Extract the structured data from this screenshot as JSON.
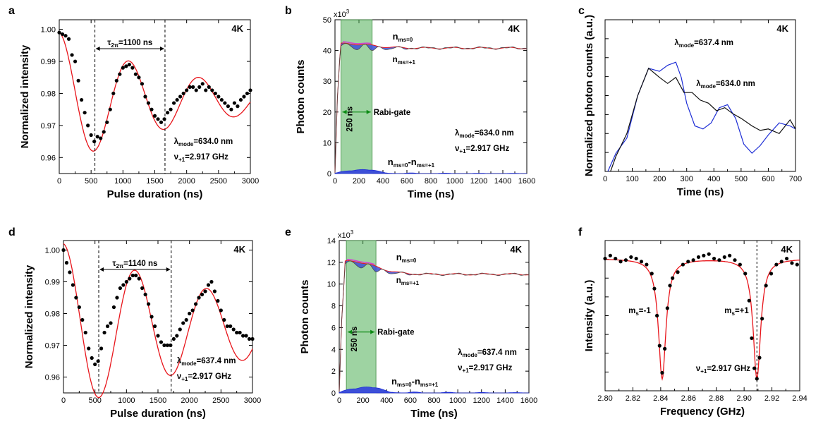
{
  "colors": {
    "fit": "#e8151b",
    "data": "#000000",
    "blue": "#1f2fd6",
    "fill_blue": "#3c4fd8",
    "fill_magenta": "#d23fd0",
    "gate": "#4fae55",
    "green_text": "#0c8a14",
    "black_line": "#111111"
  },
  "chart_data": [
    {
      "panel": "a",
      "type": "scatter",
      "xlabel": "Pulse duration (ns)",
      "ylabel": "Normalized intensity",
      "xlim": [
        0,
        3000
      ],
      "ylim": [
        0.955,
        1.003
      ],
      "xticks": [
        "0",
        "500",
        "1000",
        "1500",
        "2000",
        "2500",
        "3000"
      ],
      "yticks": [
        "0.96",
        "0.97",
        "0.98",
        "0.99",
        "1.00"
      ],
      "temp": "4K",
      "lambda_label": "λ",
      "lambda_sub": "mode",
      "lambda_val": "=634.0 nm",
      "nu_label": "ν",
      "nu_sub": "+1",
      "nu_val": "=2.917 GHz",
      "tau_label": "τ",
      "tau_sub": "2π",
      "tau_val": "=1100 ns",
      "vlines": [
        560,
        1660
      ],
      "fit": {
        "A": 0.021,
        "tau": 1100,
        "decay": 2000,
        "offset": 0.978,
        "slow": 0.0
      },
      "x": [
        0,
        50,
        100,
        150,
        200,
        250,
        300,
        350,
        400,
        450,
        500,
        550,
        600,
        650,
        700,
        750,
        800,
        850,
        900,
        950,
        1000,
        1050,
        1100,
        1150,
        1200,
        1250,
        1300,
        1350,
        1400,
        1450,
        1500,
        1550,
        1600,
        1650,
        1700,
        1750,
        1800,
        1850,
        1900,
        1950,
        2000,
        2050,
        2100,
        2150,
        2200,
        2250,
        2300,
        2350,
        2400,
        2450,
        2500,
        2550,
        2600,
        2650,
        2700,
        2750,
        2800,
        2850,
        2900,
        2950,
        3000
      ],
      "y": [
        0.999,
        0.9985,
        0.998,
        0.997,
        0.992,
        0.99,
        0.984,
        0.978,
        0.974,
        0.97,
        0.967,
        0.965,
        0.9665,
        0.966,
        0.968,
        0.971,
        0.975,
        0.98,
        0.984,
        0.986,
        0.988,
        0.9885,
        0.989,
        0.988,
        0.986,
        0.985,
        0.983,
        0.979,
        0.977,
        0.975,
        0.973,
        0.972,
        0.971,
        0.972,
        0.974,
        0.975,
        0.977,
        0.978,
        0.979,
        0.98,
        0.981,
        0.982,
        0.982,
        0.981,
        0.982,
        0.983,
        0.981,
        0.982,
        0.981,
        0.98,
        0.979,
        0.978,
        0.977,
        0.976,
        0.975,
        0.977,
        0.976,
        0.978,
        0.979,
        0.98,
        0.981
      ]
    },
    {
      "panel": "b",
      "type": "area",
      "xlabel": "Time (ns)",
      "ylabel": "Photon counts",
      "xlim": [
        0,
        1600
      ],
      "ylim": [
        0,
        50
      ],
      "xticks": [
        "0",
        "200",
        "400",
        "600",
        "800",
        "1000",
        "1200",
        "1400",
        "1600"
      ],
      "yticks": [
        "0",
        "10",
        "20",
        "30",
        "40",
        "50"
      ],
      "multiplier": "x10",
      "multiplier_exp": "3",
      "temp": "4K",
      "gate": [
        50,
        310
      ],
      "gate_width": "250 ns",
      "gate_label": "Rabi-gate",
      "n0_label": "n",
      "n0_sub": "ms=0",
      "n1_label": "n",
      "n1_sub": "ms=+1",
      "diff_label": "n",
      "diff_sub": "ms=0",
      "diff_mid": "-n",
      "diff_sub2": "ms=+1",
      "lambda_label": "λ",
      "lambda_sub": "mode",
      "lambda_val": "=634.0 nm",
      "nu_label": "ν",
      "nu_sub": "+1",
      "nu_val": "=2.917 GHz",
      "plateau": 40.8,
      "peak": 42.2,
      "diff_amp": 1.3
    },
    {
      "panel": "c",
      "type": "line",
      "xlabel": "Time (ns)",
      "ylabel": "Normalized photon counts (a.u.)",
      "xlim": [
        0,
        700
      ],
      "ylim": [
        0,
        100
      ],
      "xticks": [
        "0",
        "100",
        "200",
        "300",
        "400",
        "500",
        "600",
        "700"
      ],
      "temp": "4K",
      "series": [
        {
          "name": "λmode=637.4 nm",
          "label": "λ",
          "sub": "mode",
          "val": "=637.4 nm",
          "color": "blue",
          "x": [
            10,
            40,
            80,
            120,
            160,
            200,
            230,
            260,
            280,
            300,
            330,
            360,
            390,
            420,
            450,
            480,
            510,
            540,
            570,
            600,
            640,
            680,
            700
          ],
          "y": [
            0,
            12,
            22,
            50,
            68,
            66,
            70,
            72,
            62,
            45,
            30,
            28,
            32,
            42,
            44,
            35,
            18,
            12,
            17,
            24,
            32,
            30,
            28
          ]
        },
        {
          "name": "λmode=634.0 nm",
          "label": "λ",
          "sub": "mode",
          "val": "=634.0 nm",
          "color": "black_line",
          "x": [
            20,
            40,
            80,
            120,
            160,
            200,
            230,
            260,
            290,
            320,
            350,
            380,
            410,
            440,
            470,
            500,
            540,
            570,
            600,
            640,
            680,
            700
          ],
          "y": [
            0,
            10,
            25,
            50,
            68,
            62,
            58,
            62,
            52,
            52,
            47,
            45,
            40,
            42,
            38,
            35,
            30,
            27,
            28,
            25,
            34,
            28
          ]
        }
      ]
    },
    {
      "panel": "d",
      "type": "scatter",
      "xlabel": "Pulse duration (ns)",
      "ylabel": "Normalized intensity",
      "xlim": [
        0,
        3000
      ],
      "ylim": [
        0.955,
        1.003
      ],
      "xticks": [
        "0",
        "500",
        "1000",
        "1500",
        "2000",
        "2500",
        "3000"
      ],
      "yticks": [
        "0.96",
        "0.97",
        "0.98",
        "0.99",
        "1.00"
      ],
      "temp": "4K",
      "lambda_label": "λ",
      "lambda_sub": "mode",
      "lambda_val": "=637.4 nm",
      "nu_label": "ν",
      "nu_sub": "+1",
      "nu_val": "=2.917 GHz",
      "tau_label": "τ",
      "tau_sub": "2π",
      "tau_val": "=1140 ns",
      "vlines": [
        560,
        1710
      ],
      "fit": {
        "A": 0.0265,
        "tau": 1140,
        "decay": 3000,
        "offset": 0.9755,
        "slow": 0.0
      },
      "x": [
        0,
        50,
        100,
        150,
        200,
        250,
        300,
        350,
        400,
        450,
        500,
        550,
        600,
        650,
        700,
        750,
        800,
        850,
        900,
        950,
        1000,
        1050,
        1100,
        1150,
        1200,
        1250,
        1300,
        1350,
        1400,
        1450,
        1500,
        1550,
        1600,
        1650,
        1700,
        1750,
        1800,
        1850,
        1900,
        1950,
        2000,
        2050,
        2100,
        2150,
        2200,
        2250,
        2300,
        2350,
        2400,
        2450,
        2500,
        2550,
        2600,
        2650,
        2700,
        2750,
        2800,
        2850,
        2900,
        2950,
        3000
      ],
      "y": [
        1.0,
        0.996,
        0.993,
        0.989,
        0.985,
        0.982,
        0.978,
        0.974,
        0.969,
        0.966,
        0.964,
        0.965,
        0.969,
        0.974,
        0.976,
        0.977,
        0.982,
        0.985,
        0.988,
        0.989,
        0.99,
        0.991,
        0.992,
        0.992,
        0.991,
        0.988,
        0.986,
        0.983,
        0.979,
        0.976,
        0.973,
        0.971,
        0.97,
        0.97,
        0.97,
        0.972,
        0.973,
        0.975,
        0.977,
        0.978,
        0.98,
        0.981,
        0.983,
        0.985,
        0.986,
        0.987,
        0.989,
        0.99,
        0.987,
        0.984,
        0.981,
        0.978,
        0.976,
        0.976,
        0.975,
        0.974,
        0.974,
        0.973,
        0.973,
        0.972,
        0.972
      ]
    },
    {
      "panel": "e",
      "type": "area",
      "xlabel": "Time (ns)",
      "ylabel": "Photon counts",
      "xlim": [
        0,
        1600
      ],
      "ylim": [
        0,
        14
      ],
      "xticks": [
        "0",
        "200",
        "400",
        "600",
        "800",
        "1000",
        "1200",
        "1400",
        "1600"
      ],
      "yticks": [
        "0",
        "2",
        "4",
        "6",
        "8",
        "10",
        "12",
        "14"
      ],
      "multiplier": "x10",
      "multiplier_exp": "3",
      "temp": "4K",
      "gate": [
        60,
        310
      ],
      "gate_width": "250 ns",
      "gate_label": "Rabi-gate",
      "n0_label": "n",
      "n0_sub": "ms=0",
      "n1_label": "n",
      "n1_sub": "ms=+1",
      "diff_label": "n",
      "diff_sub": "ms=0",
      "diff_mid": "-n",
      "diff_sub2": "ms=+1",
      "lambda_label": "λ",
      "lambda_sub": "mode",
      "lambda_val": "=637.4 nm",
      "nu_label": "ν",
      "nu_sub": "+1",
      "nu_val": "=2.917 GHz",
      "plateau": 10.9,
      "peak": 12.1,
      "diff_amp": 0.55
    },
    {
      "panel": "f",
      "type": "scatter",
      "xlabel": "Frequency (GHz)",
      "ylabel": "Intensity (a.u.)",
      "xlim": [
        2.8,
        2.95
      ],
      "ylim": [
        0,
        100
      ],
      "xticks": [
        "2.80",
        "2.82",
        "2.84",
        "2.86",
        "2.88",
        "2.90",
        "2.92",
        "2.94"
      ],
      "temp": "4K",
      "ms_minus_label": "m",
      "ms_minus_sub": "s",
      "ms_minus_val": "=-1",
      "ms_plus_label": "m",
      "ms_plus_sub": "s",
      "ms_plus_val": "=+1",
      "nu_label": "ν",
      "nu_sub": "+1",
      "nu_val": "=2.917 GHz",
      "vline": 2.917,
      "dips": [
        2.844,
        2.917
      ],
      "x": [
        2.8,
        2.804,
        2.808,
        2.812,
        2.816,
        2.82,
        2.824,
        2.828,
        2.832,
        2.836,
        2.838,
        2.84,
        2.842,
        2.844,
        2.846,
        2.848,
        2.85,
        2.852,
        2.856,
        2.86,
        2.864,
        2.868,
        2.872,
        2.876,
        2.88,
        2.884,
        2.888,
        2.892,
        2.896,
        2.9,
        2.904,
        2.908,
        2.911,
        2.913,
        2.915,
        2.917,
        2.919,
        2.921,
        2.924,
        2.928,
        2.932,
        2.936,
        2.94,
        2.944,
        2.948
      ],
      "y": [
        88,
        90,
        88,
        86,
        87,
        89,
        88,
        86,
        84,
        78,
        68,
        50,
        30,
        12,
        28,
        55,
        70,
        75,
        79,
        84,
        86,
        87,
        89,
        90,
        91,
        88,
        87,
        89,
        90,
        87,
        84,
        78,
        60,
        35,
        15,
        8,
        22,
        48,
        70,
        78,
        84,
        86,
        88,
        85,
        84
      ]
    }
  ]
}
